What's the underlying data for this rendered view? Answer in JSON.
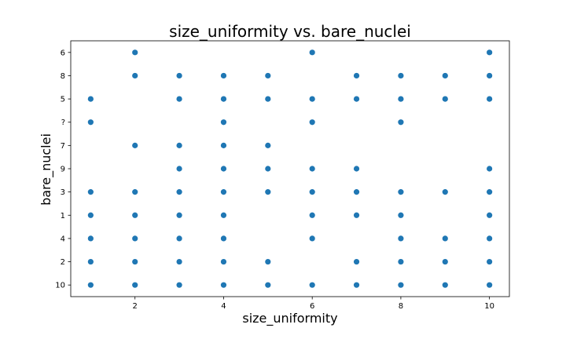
{
  "chart_data": {
    "type": "scatter",
    "title": "size_uniformity vs. bare_nuclei",
    "xlabel": "size_uniformity",
    "ylabel": "bare_nuclei",
    "xlim": [
      0.55,
      10.45
    ],
    "x_ticks": [
      2,
      4,
      6,
      8,
      10
    ],
    "y_categories": [
      "10",
      "2",
      "4",
      "1",
      "3",
      "9",
      "7",
      "?",
      "5",
      "8",
      "6"
    ],
    "marker_color": "#1f77b4",
    "grid": false,
    "legend": "none",
    "points": [
      {
        "x": 1,
        "y": "5"
      },
      {
        "x": 1,
        "y": "?"
      },
      {
        "x": 1,
        "y": "3"
      },
      {
        "x": 1,
        "y": "1"
      },
      {
        "x": 1,
        "y": "4"
      },
      {
        "x": 1,
        "y": "2"
      },
      {
        "x": 1,
        "y": "10"
      },
      {
        "x": 2,
        "y": "6"
      },
      {
        "x": 2,
        "y": "8"
      },
      {
        "x": 2,
        "y": "7"
      },
      {
        "x": 2,
        "y": "3"
      },
      {
        "x": 2,
        "y": "1"
      },
      {
        "x": 2,
        "y": "4"
      },
      {
        "x": 2,
        "y": "2"
      },
      {
        "x": 2,
        "y": "10"
      },
      {
        "x": 3,
        "y": "8"
      },
      {
        "x": 3,
        "y": "5"
      },
      {
        "x": 3,
        "y": "7"
      },
      {
        "x": 3,
        "y": "9"
      },
      {
        "x": 3,
        "y": "3"
      },
      {
        "x": 3,
        "y": "1"
      },
      {
        "x": 3,
        "y": "4"
      },
      {
        "x": 3,
        "y": "2"
      },
      {
        "x": 3,
        "y": "10"
      },
      {
        "x": 4,
        "y": "8"
      },
      {
        "x": 4,
        "y": "5"
      },
      {
        "x": 4,
        "y": "?"
      },
      {
        "x": 4,
        "y": "7"
      },
      {
        "x": 4,
        "y": "9"
      },
      {
        "x": 4,
        "y": "3"
      },
      {
        "x": 4,
        "y": "1"
      },
      {
        "x": 4,
        "y": "4"
      },
      {
        "x": 4,
        "y": "2"
      },
      {
        "x": 4,
        "y": "10"
      },
      {
        "x": 5,
        "y": "8"
      },
      {
        "x": 5,
        "y": "5"
      },
      {
        "x": 5,
        "y": "7"
      },
      {
        "x": 5,
        "y": "9"
      },
      {
        "x": 5,
        "y": "3"
      },
      {
        "x": 5,
        "y": "2"
      },
      {
        "x": 5,
        "y": "10"
      },
      {
        "x": 6,
        "y": "6"
      },
      {
        "x": 6,
        "y": "5"
      },
      {
        "x": 6,
        "y": "?"
      },
      {
        "x": 6,
        "y": "9"
      },
      {
        "x": 6,
        "y": "3"
      },
      {
        "x": 6,
        "y": "1"
      },
      {
        "x": 6,
        "y": "4"
      },
      {
        "x": 6,
        "y": "10"
      },
      {
        "x": 7,
        "y": "8"
      },
      {
        "x": 7,
        "y": "5"
      },
      {
        "x": 7,
        "y": "9"
      },
      {
        "x": 7,
        "y": "3"
      },
      {
        "x": 7,
        "y": "1"
      },
      {
        "x": 7,
        "y": "2"
      },
      {
        "x": 7,
        "y": "10"
      },
      {
        "x": 8,
        "y": "8"
      },
      {
        "x": 8,
        "y": "5"
      },
      {
        "x": 8,
        "y": "?"
      },
      {
        "x": 8,
        "y": "3"
      },
      {
        "x": 8,
        "y": "1"
      },
      {
        "x": 8,
        "y": "4"
      },
      {
        "x": 8,
        "y": "2"
      },
      {
        "x": 8,
        "y": "10"
      },
      {
        "x": 9,
        "y": "8"
      },
      {
        "x": 9,
        "y": "5"
      },
      {
        "x": 9,
        "y": "3"
      },
      {
        "x": 9,
        "y": "4"
      },
      {
        "x": 9,
        "y": "2"
      },
      {
        "x": 9,
        "y": "10"
      },
      {
        "x": 10,
        "y": "6"
      },
      {
        "x": 10,
        "y": "8"
      },
      {
        "x": 10,
        "y": "5"
      },
      {
        "x": 10,
        "y": "9"
      },
      {
        "x": 10,
        "y": "3"
      },
      {
        "x": 10,
        "y": "1"
      },
      {
        "x": 10,
        "y": "4"
      },
      {
        "x": 10,
        "y": "2"
      },
      {
        "x": 10,
        "y": "10"
      }
    ]
  }
}
